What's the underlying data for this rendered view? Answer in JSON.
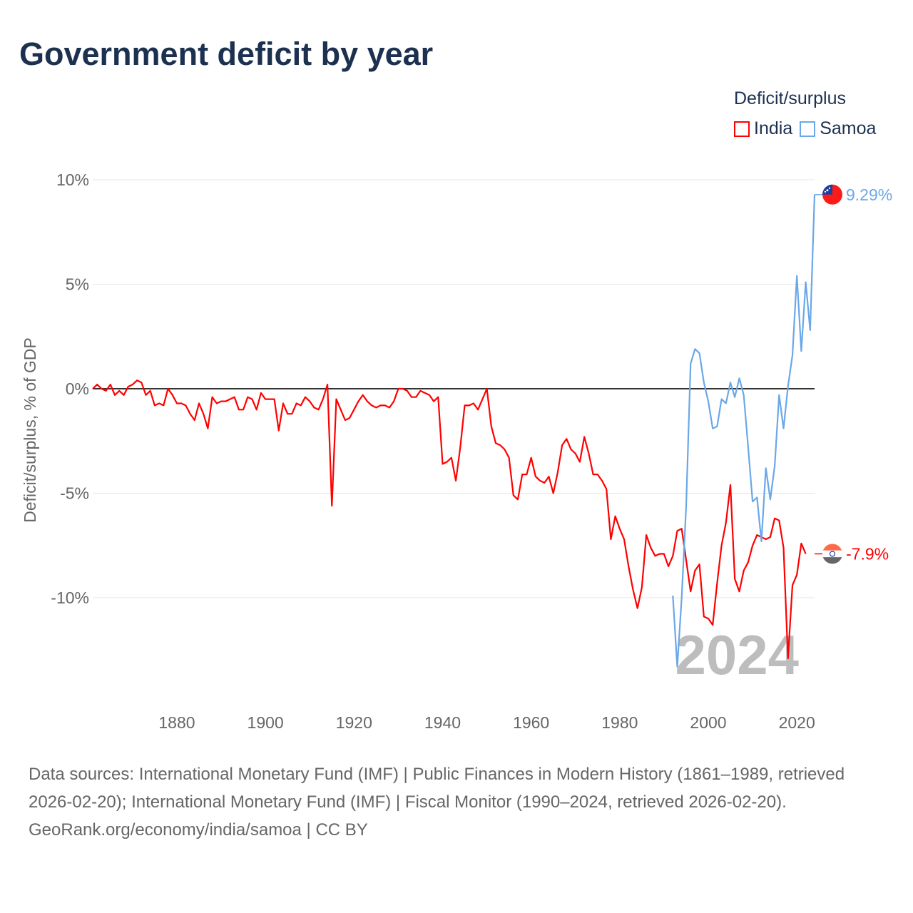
{
  "title": "Government deficit by year",
  "legend_title": "Deficit/surplus",
  "footer": {
    "sources": "Data sources: International Monetary Fund (IMF) | Public Finances in Modern History (1861–1989, retrieved 2026-02-20); International Monetary Fund (IMF) | Fiscal Monitor (1990–2024, retrieved 2026-02-20).",
    "credit": "GeoRank.org/economy/india/samoa | CC BY"
  },
  "chart_data": {
    "type": "line",
    "title": "Government deficit by year",
    "xlabel": "",
    "ylabel": "Deficit/surplus, % of GDP",
    "xlim": [
      1861,
      2024
    ],
    "ylim": [
      -14,
      10.5
    ],
    "x_ticks": [
      1880,
      1900,
      1920,
      1940,
      1960,
      1980,
      2000,
      2020
    ],
    "y_ticks": [
      10,
      5,
      0,
      -5,
      -10
    ],
    "y_tick_labels": [
      "10%",
      "5%",
      "0%",
      "-5%",
      "-10%"
    ],
    "year_watermark": "2024",
    "grid": true,
    "legend": "top-right",
    "series": [
      {
        "name": "India",
        "color": "#ff0000",
        "start_year": 1861,
        "end_label": "-7.9%",
        "flag": "india-flag",
        "values": [
          0,
          0.2,
          0,
          -0.1,
          0.2,
          -0.3,
          -0.1,
          -0.3,
          0.1,
          0.2,
          0.4,
          0.3,
          -0.3,
          -0.1,
          -0.8,
          -0.7,
          -0.8,
          0,
          -0.3,
          -0.7,
          -0.7,
          -0.8,
          -1.2,
          -1.5,
          -0.7,
          -1.2,
          -1.9,
          -0.4,
          -0.7,
          -0.6,
          -0.6,
          -0.5,
          -0.4,
          -1.0,
          -1.0,
          -0.4,
          -0.5,
          -1.0,
          -0.2,
          -0.5,
          -0.5,
          -0.5,
          -2.0,
          -0.7,
          -1.2,
          -1.2,
          -0.7,
          -0.8,
          -0.4,
          -0.6,
          -0.9,
          -1.0,
          -0.5,
          0.2,
          -5.6,
          -0.5,
          -1.0,
          -1.5,
          -1.4,
          -1.0,
          -0.6,
          -0.3,
          -0.6,
          -0.8,
          -0.9,
          -0.8,
          -0.8,
          -0.9,
          -0.6,
          0.0,
          0.0,
          -0.1,
          -0.4,
          -0.4,
          -0.1,
          -0.2,
          -0.3,
          -0.6,
          -0.4,
          -3.6,
          -3.5,
          -3.3,
          -4.4,
          -2.8,
          -0.8,
          -0.8,
          -0.7,
          -1.0,
          -0.5,
          0.0,
          -1.8,
          -2.6,
          -2.7,
          -2.9,
          -3.3,
          -5.1,
          -5.3,
          -4.1,
          -4.1,
          -3.3,
          -4.2,
          -4.4,
          -4.5,
          -4.2,
          -5.0,
          -4.0,
          -2.7,
          -2.4,
          -2.9,
          -3.1,
          -3.5,
          -2.3,
          -3.1,
          -4.1,
          -4.1,
          -4.4,
          -4.8,
          -7.2,
          -6.1,
          -6.7,
          -7.2,
          -8.5,
          -9.6,
          -10.5,
          -9.5,
          -7.0,
          -7.6,
          -8.0,
          -7.9,
          -7.9,
          -8.5,
          -8.0,
          -6.8,
          -6.7,
          -8.2,
          -9.7,
          -8.7,
          -8.4,
          -10.9,
          -11.0,
          -11.3,
          -9.3,
          -7.5,
          -6.4,
          -4.6,
          -9.1,
          -9.7,
          -8.7,
          -8.3,
          -7.5,
          -7.0,
          -7.1,
          -7.2,
          -7.1,
          -6.2,
          -6.3,
          -7.6,
          -12.9,
          -9.4,
          -8.9,
          -7.4,
          -7.9
        ]
      },
      {
        "name": "Samoa",
        "color": "#6aa8e8",
        "start_year": 1992,
        "end_label": "9.29%",
        "flag": "samoa-flag",
        "values": [
          -9.9,
          -13.3,
          -10,
          -5.6,
          1.2,
          1.9,
          1.7,
          0.3,
          -0.6,
          -1.9,
          -1.8,
          -0.5,
          -0.7,
          0.3,
          -0.4,
          0.5,
          -0.3,
          -2.8,
          -5.4,
          -5.2,
          -7.3,
          -3.8,
          -5.3,
          -3.7,
          -0.3,
          -1.9,
          0.1,
          1.6,
          5.4,
          1.8,
          5.1,
          2.8,
          9.29
        ]
      }
    ]
  }
}
